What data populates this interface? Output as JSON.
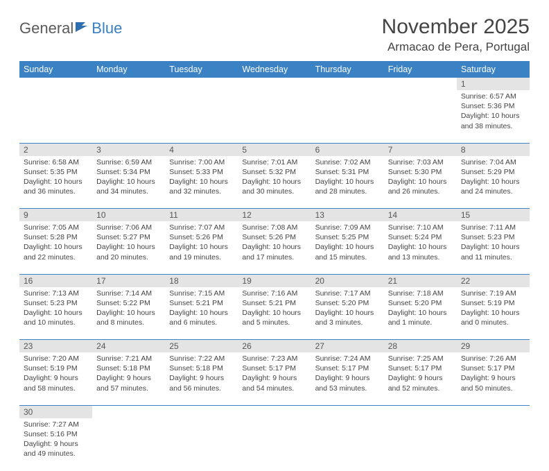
{
  "logo": {
    "part1": "General",
    "part2": "Blue"
  },
  "title": "November 2025",
  "location": "Armacao de Pera, Portugal",
  "colors": {
    "header_bg": "#3a82c4",
    "header_fg": "#ffffff",
    "daynum_bg": "#e4e4e4",
    "border": "#3a82c4",
    "text": "#444444"
  },
  "weekdays": [
    "Sunday",
    "Monday",
    "Tuesday",
    "Wednesday",
    "Thursday",
    "Friday",
    "Saturday"
  ],
  "weeks": [
    [
      null,
      null,
      null,
      null,
      null,
      null,
      {
        "n": "1",
        "sr": "Sunrise: 6:57 AM",
        "ss": "Sunset: 5:36 PM",
        "dl": "Daylight: 10 hours and 38 minutes."
      }
    ],
    [
      {
        "n": "2",
        "sr": "Sunrise: 6:58 AM",
        "ss": "Sunset: 5:35 PM",
        "dl": "Daylight: 10 hours and 36 minutes."
      },
      {
        "n": "3",
        "sr": "Sunrise: 6:59 AM",
        "ss": "Sunset: 5:34 PM",
        "dl": "Daylight: 10 hours and 34 minutes."
      },
      {
        "n": "4",
        "sr": "Sunrise: 7:00 AM",
        "ss": "Sunset: 5:33 PM",
        "dl": "Daylight: 10 hours and 32 minutes."
      },
      {
        "n": "5",
        "sr": "Sunrise: 7:01 AM",
        "ss": "Sunset: 5:32 PM",
        "dl": "Daylight: 10 hours and 30 minutes."
      },
      {
        "n": "6",
        "sr": "Sunrise: 7:02 AM",
        "ss": "Sunset: 5:31 PM",
        "dl": "Daylight: 10 hours and 28 minutes."
      },
      {
        "n": "7",
        "sr": "Sunrise: 7:03 AM",
        "ss": "Sunset: 5:30 PM",
        "dl": "Daylight: 10 hours and 26 minutes."
      },
      {
        "n": "8",
        "sr": "Sunrise: 7:04 AM",
        "ss": "Sunset: 5:29 PM",
        "dl": "Daylight: 10 hours and 24 minutes."
      }
    ],
    [
      {
        "n": "9",
        "sr": "Sunrise: 7:05 AM",
        "ss": "Sunset: 5:28 PM",
        "dl": "Daylight: 10 hours and 22 minutes."
      },
      {
        "n": "10",
        "sr": "Sunrise: 7:06 AM",
        "ss": "Sunset: 5:27 PM",
        "dl": "Daylight: 10 hours and 20 minutes."
      },
      {
        "n": "11",
        "sr": "Sunrise: 7:07 AM",
        "ss": "Sunset: 5:26 PM",
        "dl": "Daylight: 10 hours and 19 minutes."
      },
      {
        "n": "12",
        "sr": "Sunrise: 7:08 AM",
        "ss": "Sunset: 5:26 PM",
        "dl": "Daylight: 10 hours and 17 minutes."
      },
      {
        "n": "13",
        "sr": "Sunrise: 7:09 AM",
        "ss": "Sunset: 5:25 PM",
        "dl": "Daylight: 10 hours and 15 minutes."
      },
      {
        "n": "14",
        "sr": "Sunrise: 7:10 AM",
        "ss": "Sunset: 5:24 PM",
        "dl": "Daylight: 10 hours and 13 minutes."
      },
      {
        "n": "15",
        "sr": "Sunrise: 7:11 AM",
        "ss": "Sunset: 5:23 PM",
        "dl": "Daylight: 10 hours and 11 minutes."
      }
    ],
    [
      {
        "n": "16",
        "sr": "Sunrise: 7:13 AM",
        "ss": "Sunset: 5:23 PM",
        "dl": "Daylight: 10 hours and 10 minutes."
      },
      {
        "n": "17",
        "sr": "Sunrise: 7:14 AM",
        "ss": "Sunset: 5:22 PM",
        "dl": "Daylight: 10 hours and 8 minutes."
      },
      {
        "n": "18",
        "sr": "Sunrise: 7:15 AM",
        "ss": "Sunset: 5:21 PM",
        "dl": "Daylight: 10 hours and 6 minutes."
      },
      {
        "n": "19",
        "sr": "Sunrise: 7:16 AM",
        "ss": "Sunset: 5:21 PM",
        "dl": "Daylight: 10 hours and 5 minutes."
      },
      {
        "n": "20",
        "sr": "Sunrise: 7:17 AM",
        "ss": "Sunset: 5:20 PM",
        "dl": "Daylight: 10 hours and 3 minutes."
      },
      {
        "n": "21",
        "sr": "Sunrise: 7:18 AM",
        "ss": "Sunset: 5:20 PM",
        "dl": "Daylight: 10 hours and 1 minute."
      },
      {
        "n": "22",
        "sr": "Sunrise: 7:19 AM",
        "ss": "Sunset: 5:19 PM",
        "dl": "Daylight: 10 hours and 0 minutes."
      }
    ],
    [
      {
        "n": "23",
        "sr": "Sunrise: 7:20 AM",
        "ss": "Sunset: 5:19 PM",
        "dl": "Daylight: 9 hours and 58 minutes."
      },
      {
        "n": "24",
        "sr": "Sunrise: 7:21 AM",
        "ss": "Sunset: 5:18 PM",
        "dl": "Daylight: 9 hours and 57 minutes."
      },
      {
        "n": "25",
        "sr": "Sunrise: 7:22 AM",
        "ss": "Sunset: 5:18 PM",
        "dl": "Daylight: 9 hours and 56 minutes."
      },
      {
        "n": "26",
        "sr": "Sunrise: 7:23 AM",
        "ss": "Sunset: 5:17 PM",
        "dl": "Daylight: 9 hours and 54 minutes."
      },
      {
        "n": "27",
        "sr": "Sunrise: 7:24 AM",
        "ss": "Sunset: 5:17 PM",
        "dl": "Daylight: 9 hours and 53 minutes."
      },
      {
        "n": "28",
        "sr": "Sunrise: 7:25 AM",
        "ss": "Sunset: 5:17 PM",
        "dl": "Daylight: 9 hours and 52 minutes."
      },
      {
        "n": "29",
        "sr": "Sunrise: 7:26 AM",
        "ss": "Sunset: 5:17 PM",
        "dl": "Daylight: 9 hours and 50 minutes."
      }
    ],
    [
      {
        "n": "30",
        "sr": "Sunrise: 7:27 AM",
        "ss": "Sunset: 5:16 PM",
        "dl": "Daylight: 9 hours and 49 minutes."
      },
      null,
      null,
      null,
      null,
      null,
      null
    ]
  ]
}
